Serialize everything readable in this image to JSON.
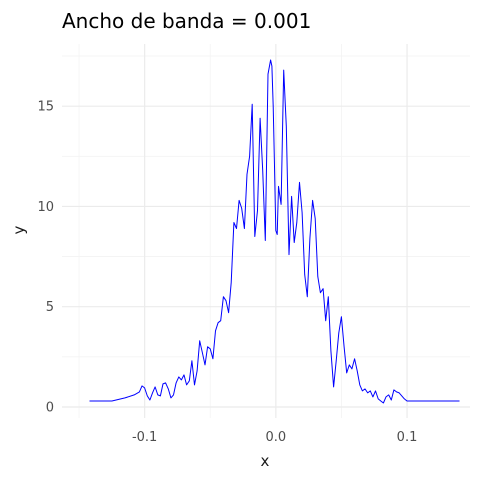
{
  "chart_data": {
    "type": "line",
    "title": "Ancho de banda = 0.001",
    "xlabel": "x",
    "ylabel": "y",
    "xlim": [
      -0.163,
      0.148
    ],
    "ylim": [
      -0.55,
      18.1
    ],
    "grid": true,
    "x_ticks": [
      -0.1,
      0.0,
      0.1
    ],
    "x_tick_labels": [
      "-0.1",
      "0.0",
      "0.1"
    ],
    "x_minor_ticks": [
      -0.15,
      -0.05,
      0.05
    ],
    "y_ticks": [
      0,
      5,
      10,
      15
    ],
    "y_tick_labels": [
      "0",
      "5",
      "10",
      "15"
    ],
    "y_minor_ticks": [
      2.5,
      7.5,
      12.5,
      17.5
    ],
    "series": [
      {
        "color": "#0000ff",
        "x": [
          -0.142,
          -0.125,
          -0.115,
          -0.108,
          -0.104,
          -0.102,
          -0.1,
          -0.098,
          -0.096,
          -0.094,
          -0.092,
          -0.09,
          -0.088,
          -0.086,
          -0.084,
          -0.082,
          -0.08,
          -0.078,
          -0.076,
          -0.074,
          -0.072,
          -0.07,
          -0.068,
          -0.066,
          -0.064,
          -0.062,
          -0.06,
          -0.058,
          -0.056,
          -0.054,
          -0.052,
          -0.05,
          -0.048,
          -0.046,
          -0.044,
          -0.042,
          -0.04,
          -0.038,
          -0.036,
          -0.034,
          -0.032,
          -0.03,
          -0.028,
          -0.026,
          -0.024,
          -0.022,
          -0.02,
          -0.018,
          -0.016,
          -0.014,
          -0.012,
          -0.01,
          -0.008,
          -0.006,
          -0.004,
          -0.003,
          -0.002,
          -0.001,
          0.0,
          0.001,
          0.002,
          0.004,
          0.006,
          0.008,
          0.01,
          0.012,
          0.014,
          0.016,
          0.018,
          0.02,
          0.022,
          0.024,
          0.026,
          0.028,
          0.03,
          0.032,
          0.034,
          0.036,
          0.038,
          0.04,
          0.042,
          0.044,
          0.046,
          0.048,
          0.05,
          0.052,
          0.054,
          0.056,
          0.058,
          0.06,
          0.062,
          0.064,
          0.066,
          0.068,
          0.07,
          0.072,
          0.074,
          0.076,
          0.078,
          0.08,
          0.082,
          0.084,
          0.086,
          0.088,
          0.09,
          0.092,
          0.094,
          0.096,
          0.098,
          0.1,
          0.11,
          0.14
        ],
        "y": [
          0.3,
          0.3,
          0.45,
          0.6,
          0.75,
          1.05,
          0.95,
          0.55,
          0.35,
          0.7,
          1.0,
          0.6,
          0.55,
          1.15,
          1.2,
          0.9,
          0.45,
          0.6,
          1.2,
          1.5,
          1.35,
          1.6,
          1.1,
          1.3,
          2.3,
          1.1,
          1.8,
          3.3,
          2.7,
          2.1,
          3.0,
          2.9,
          2.4,
          3.8,
          4.2,
          4.3,
          5.5,
          5.3,
          4.7,
          6.2,
          9.2,
          8.9,
          10.3,
          9.9,
          8.9,
          11.6,
          12.5,
          15.1,
          8.5,
          9.8,
          14.4,
          11.8,
          8.3,
          16.6,
          17.3,
          17.0,
          15.0,
          12.0,
          8.8,
          8.6,
          11.0,
          10.1,
          16.8,
          14.0,
          7.6,
          10.5,
          8.2,
          9.2,
          11.2,
          9.7,
          6.6,
          5.5,
          8.4,
          10.3,
          9.4,
          6.5,
          5.7,
          5.9,
          4.3,
          5.5,
          2.8,
          1.0,
          2.3,
          3.7,
          4.5,
          3.0,
          1.7,
          2.1,
          1.9,
          2.4,
          1.8,
          1.1,
          0.8,
          0.9,
          0.7,
          0.8,
          0.5,
          0.8,
          0.4,
          0.3,
          0.2,
          0.5,
          0.6,
          0.35,
          0.85,
          0.75,
          0.7,
          0.55,
          0.4,
          0.3,
          0.3,
          0.3
        ]
      }
    ]
  }
}
